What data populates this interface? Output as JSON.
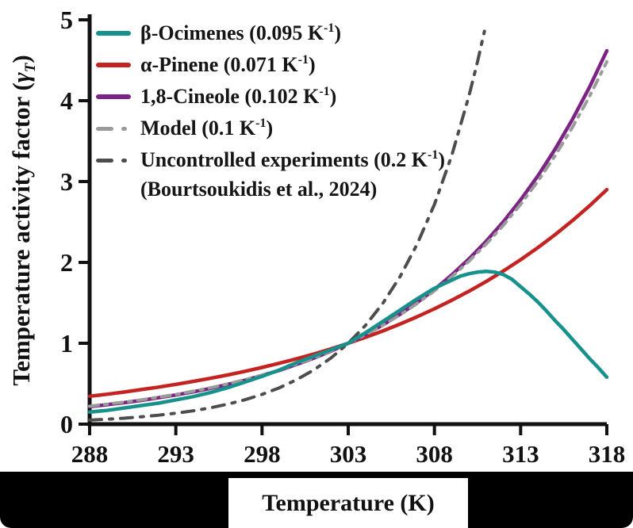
{
  "figure": {
    "background": "#ffffff",
    "caption_bar_color": "#000000",
    "axis_color": "#111111"
  },
  "chart_data": {
    "type": "line",
    "title": "",
    "xlabel": "Temperature (K)",
    "ylabel": {
      "pre": "Temperature activity factor (",
      "symbol": "γ",
      "sub": "T",
      "post": ")"
    },
    "xlim": [
      288,
      318
    ],
    "ylim": [
      0,
      5
    ],
    "xticks": [
      288,
      293,
      298,
      303,
      308,
      313,
      318
    ],
    "yticks": [
      0,
      1,
      2,
      3,
      4,
      5
    ],
    "grid": false,
    "legend_position": "upper-left",
    "series": [
      {
        "name": "β-Ocimenes",
        "rate_constant_per_K": 0.095,
        "color": "#17918c",
        "style": "solid",
        "points": [
          [
            288,
            0.15
          ],
          [
            289,
            0.17
          ],
          [
            290,
            0.2
          ],
          [
            291,
            0.23
          ],
          [
            292,
            0.26
          ],
          [
            293,
            0.3
          ],
          [
            294,
            0.34
          ],
          [
            295,
            0.39
          ],
          [
            296,
            0.45
          ],
          [
            297,
            0.52
          ],
          [
            298,
            0.59
          ],
          [
            299,
            0.67
          ],
          [
            300,
            0.76
          ],
          [
            301,
            0.84
          ],
          [
            302,
            0.92
          ],
          [
            303,
            1.0
          ],
          [
            304,
            1.13
          ],
          [
            305,
            1.27
          ],
          [
            306,
            1.41
          ],
          [
            307,
            1.55
          ],
          [
            308,
            1.68
          ],
          [
            308.5,
            1.73
          ],
          [
            309,
            1.78
          ],
          [
            309.5,
            1.83
          ],
          [
            310,
            1.86
          ],
          [
            310.5,
            1.88
          ],
          [
            311,
            1.89
          ],
          [
            311.5,
            1.88
          ],
          [
            312,
            1.85
          ],
          [
            312.5,
            1.79
          ],
          [
            313,
            1.7
          ],
          [
            313.5,
            1.61
          ],
          [
            314,
            1.51
          ],
          [
            314.5,
            1.4
          ],
          [
            315,
            1.28
          ],
          [
            315.5,
            1.17
          ],
          [
            316,
            1.05
          ],
          [
            316.5,
            0.93
          ],
          [
            317,
            0.81
          ],
          [
            317.5,
            0.7
          ],
          [
            318,
            0.58
          ]
        ]
      },
      {
        "name": "α-Pinene",
        "rate_constant_per_K": 0.071,
        "color": "#c32421",
        "style": "solid",
        "x_start": 288,
        "x_step": 1,
        "values": [
          0.345,
          0.37,
          0.397,
          0.427,
          0.458,
          0.492,
          0.528,
          0.567,
          0.608,
          0.653,
          0.701,
          0.753,
          0.808,
          0.867,
          0.931,
          1.0,
          1.074,
          1.152,
          1.237,
          1.328,
          1.426,
          1.531,
          1.643,
          1.764,
          1.894,
          2.033,
          2.183,
          2.343,
          2.516,
          2.701,
          2.9
        ]
      },
      {
        "name": "1,8-Cineole",
        "rate_constant_per_K": 0.102,
        "color": "#7b2483",
        "style": "solid",
        "x_start": 288,
        "x_step": 1,
        "values": [
          0.217,
          0.24,
          0.266,
          0.294,
          0.326,
          0.361,
          0.399,
          0.442,
          0.49,
          0.542,
          0.601,
          0.665,
          0.737,
          0.816,
          0.903,
          1.0,
          1.107,
          1.226,
          1.358,
          1.504,
          1.665,
          1.844,
          2.042,
          2.262,
          2.504,
          2.773,
          3.071,
          3.401,
          3.766,
          4.17,
          4.618
        ]
      },
      {
        "name": "Model",
        "rate_constant_per_K": 0.1,
        "color": "#9b9b9b",
        "style": "dashdot",
        "x_start": 288,
        "x_step": 1,
        "values": [
          0.223,
          0.247,
          0.273,
          0.301,
          0.333,
          0.368,
          0.407,
          0.449,
          0.497,
          0.549,
          0.607,
          0.67,
          0.741,
          0.819,
          0.905,
          1.0,
          1.105,
          1.221,
          1.35,
          1.492,
          1.649,
          1.822,
          2.014,
          2.226,
          2.46,
          2.718,
          3.004,
          3.32,
          3.669,
          4.055,
          4.482
        ]
      },
      {
        "name": "Uncontrolled experiments (Bourtsoukidis et al., 2024)",
        "rate_constant_per_K": 0.2,
        "color": "#4d4d4d",
        "style": "dashdot",
        "points": [
          [
            288,
            0.05
          ],
          [
            289,
            0.061
          ],
          [
            290,
            0.074
          ],
          [
            291,
            0.091
          ],
          [
            292,
            0.111
          ],
          [
            293,
            0.135
          ],
          [
            294,
            0.165
          ],
          [
            295,
            0.202
          ],
          [
            296,
            0.247
          ],
          [
            297,
            0.301
          ],
          [
            298,
            0.368
          ],
          [
            299,
            0.449
          ],
          [
            300,
            0.549
          ],
          [
            301,
            0.67
          ],
          [
            302,
            0.819
          ],
          [
            303,
            1.0
          ],
          [
            304,
            1.221
          ],
          [
            305,
            1.492
          ],
          [
            306,
            1.822
          ],
          [
            307,
            2.226
          ],
          [
            308,
            2.718
          ],
          [
            309,
            3.32
          ],
          [
            310,
            4.055
          ],
          [
            310.5,
            4.482
          ],
          [
            310.9,
            4.859
          ]
        ]
      }
    ]
  },
  "legend": {
    "items": [
      {
        "series": 0,
        "text": "β-Ocimenes (0.095 K",
        "sup": "-1",
        "tail": ")"
      },
      {
        "series": 1,
        "text": "α-Pinene (0.071 K",
        "sup": "-1",
        "tail": ")"
      },
      {
        "series": 2,
        "text": "1,8-Cineole (0.102 K",
        "sup": "-1",
        "tail": ")"
      },
      {
        "series": 3,
        "text": "Model (0.1 K",
        "sup": "-1",
        "tail": ")"
      },
      {
        "series": 4,
        "text": "Uncontrolled experiments (0.2 K",
        "sup": "-1",
        "tail": ")",
        "line2": "(Bourtsoukidis et al., 2024)"
      }
    ]
  }
}
